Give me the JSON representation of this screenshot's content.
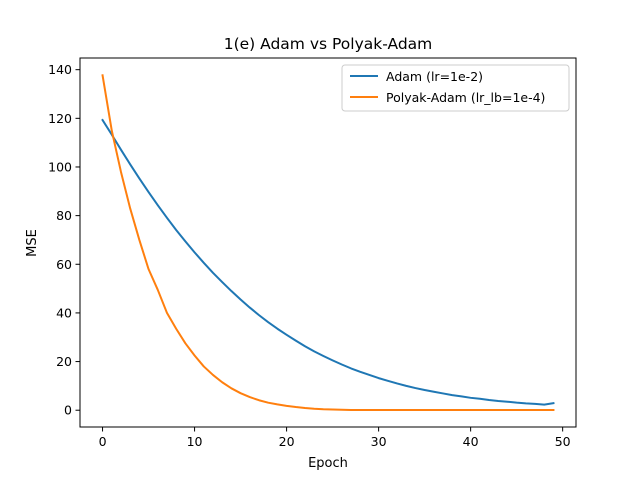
{
  "chart_data": {
    "type": "line",
    "title": "1(e) Adam vs Polyak-Adam",
    "xlabel": "Epoch",
    "ylabel": "MSE",
    "xlim": [
      -2.45,
      51.45
    ],
    "ylim": [
      -6.9,
      144.8
    ],
    "xticks": [
      0,
      10,
      20,
      30,
      40,
      50
    ],
    "yticks": [
      0,
      20,
      40,
      60,
      80,
      100,
      120,
      140
    ],
    "grid": false,
    "legend_position": "top-right",
    "series": [
      {
        "name": "Adam (lr=1e-2)",
        "color": "#1f77b4",
        "x": [
          0,
          1,
          2,
          3,
          4,
          5,
          6,
          7,
          8,
          9,
          10,
          11,
          12,
          13,
          14,
          15,
          16,
          17,
          18,
          19,
          20,
          21,
          22,
          23,
          24,
          25,
          26,
          27,
          28,
          29,
          30,
          31,
          32,
          33,
          34,
          35,
          36,
          37,
          38,
          39,
          40,
          41,
          42,
          43,
          44,
          45,
          46,
          47,
          48,
          49
        ],
        "y": [
          119.3,
          113.3,
          107.1,
          101.1,
          95.3,
          89.7,
          84.3,
          79.1,
          74.1,
          69.4,
          64.9,
          60.6,
          56.5,
          52.7,
          49.0,
          45.5,
          42.2,
          39.1,
          36.2,
          33.5,
          31.0,
          28.6,
          26.3,
          24.2,
          22.3,
          20.5,
          18.8,
          17.2,
          15.8,
          14.5,
          13.2,
          12.1,
          11.0,
          10.0,
          9.1,
          8.3,
          7.6,
          6.9,
          6.2,
          5.7,
          5.1,
          4.7,
          4.2,
          3.8,
          3.5,
          3.1,
          2.8,
          2.6,
          2.3,
          2.9
        ]
      },
      {
        "name": "Polyak-Adam (lr_lb=1e-4)",
        "color": "#ff7f0e",
        "x": [
          0,
          1,
          2,
          3,
          4,
          5,
          6,
          7,
          8,
          9,
          10,
          11,
          12,
          13,
          14,
          15,
          16,
          17,
          18,
          19,
          20,
          21,
          22,
          23,
          24,
          25,
          26,
          27,
          28,
          29,
          30,
          31,
          32,
          33,
          34,
          35,
          36,
          37,
          38,
          39,
          40,
          41,
          42,
          43,
          44,
          45,
          46,
          47,
          48,
          49
        ],
        "y": [
          137.7,
          115.0,
          98.0,
          83.0,
          70.0,
          58.0,
          49.5,
          40.0,
          33.5,
          27.5,
          22.5,
          18.0,
          14.5,
          11.5,
          9.0,
          7.0,
          5.4,
          4.1,
          3.1,
          2.4,
          1.8,
          1.3,
          0.9,
          0.6,
          0.4,
          0.3,
          0.2,
          0.1,
          0.1,
          0.1,
          0.1,
          0.1,
          0.1,
          0.1,
          0.1,
          0.1,
          0.1,
          0.1,
          0.1,
          0.1,
          0.1,
          0.1,
          0.1,
          0.1,
          0.1,
          0.1,
          0.1,
          0.1,
          0.1,
          0.1
        ]
      }
    ]
  }
}
